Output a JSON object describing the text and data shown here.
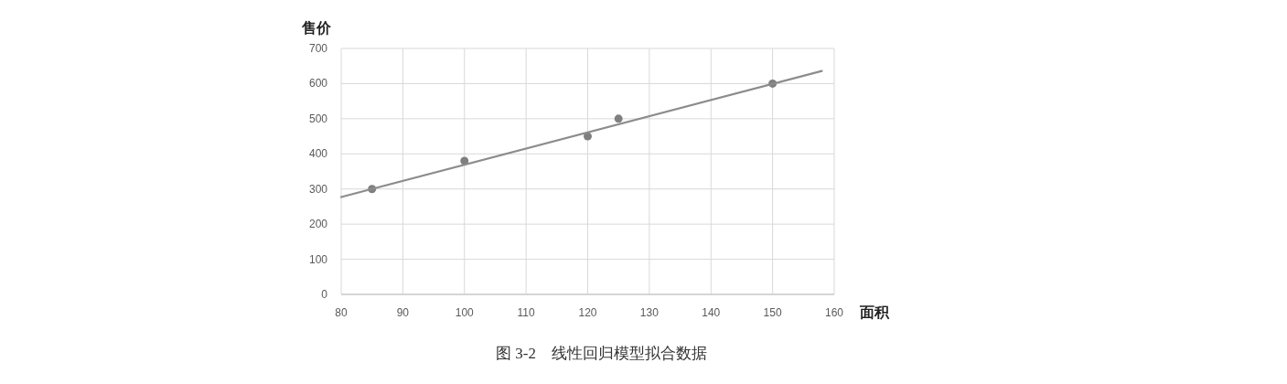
{
  "chart_data": {
    "type": "scatter",
    "xlabel": "面积",
    "ylabel": "售价",
    "annotations": [
      "图 3-2　线性回归模型拟合数据"
    ],
    "xlim": [
      80,
      160
    ],
    "xticks": [
      80,
      90,
      100,
      110,
      120,
      130,
      140,
      150,
      160
    ],
    "ylim": [
      0,
      700
    ],
    "yticks": [
      0,
      100,
      200,
      300,
      400,
      500,
      600,
      700
    ],
    "grid": true,
    "marker": "circle",
    "series": [
      {
        "type": "scatter",
        "color": "#7f7f7f",
        "x": [
          85,
          100,
          120,
          125,
          150
        ],
        "values": [
          300,
          380,
          450,
          500,
          600
        ]
      },
      {
        "type": "line",
        "color": "#8c8c8c",
        "marker": "none",
        "x": [
          80,
          158
        ],
        "values": [
          277,
          636
        ]
      }
    ]
  }
}
